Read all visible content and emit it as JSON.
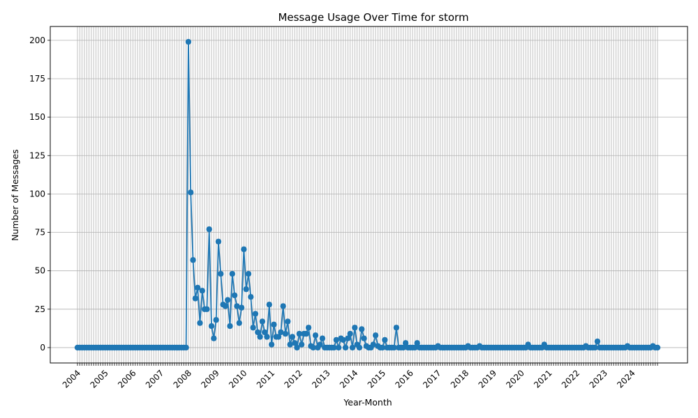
{
  "chart_data": {
    "type": "line",
    "title": "Message Usage Over Time for storm",
    "xlabel": "Year-Month",
    "ylabel": "Number of Messages",
    "ylim": [
      -10,
      209
    ],
    "yticks": [
      0,
      25,
      50,
      75,
      100,
      125,
      150,
      175,
      200
    ],
    "xtick_labels": [
      "2004",
      "2005",
      "2006",
      "2007",
      "2008",
      "2009",
      "2010",
      "2011",
      "2012",
      "2013",
      "2014",
      "2015",
      "2016",
      "2017",
      "2018",
      "2019",
      "2020",
      "2021",
      "2022",
      "2023",
      "2024"
    ],
    "grid": true,
    "line_color": "#1f77b4",
    "x_start": "2004-01",
    "x_end": "2024-12",
    "series": [
      {
        "values": [
          0,
          0,
          0,
          0,
          0,
          0,
          0,
          0,
          0,
          0,
          0,
          0,
          0,
          0,
          0,
          0,
          0,
          0,
          0,
          0,
          0,
          0,
          0,
          0,
          0,
          0,
          0,
          0,
          0,
          0,
          0,
          0,
          0,
          0,
          0,
          0,
          0,
          0,
          0,
          0,
          0,
          0,
          0,
          0,
          0,
          0,
          0,
          0,
          199,
          101,
          57,
          32,
          39,
          16,
          37,
          25,
          25,
          77,
          14,
          6,
          18,
          69,
          48,
          28,
          27,
          31,
          14,
          48,
          34,
          27,
          16,
          26,
          64,
          38,
          48,
          33,
          13,
          22,
          10,
          7,
          17,
          10,
          7,
          28,
          2,
          15,
          7,
          7,
          10,
          27,
          9,
          17,
          2,
          7,
          3,
          0,
          9,
          2,
          9,
          9,
          13,
          1,
          0,
          8,
          0,
          2,
          6,
          0,
          0,
          0,
          0,
          0,
          5,
          0,
          6,
          5,
          0,
          6,
          9,
          0,
          13,
          2,
          0,
          12,
          6,
          1,
          0,
          0,
          2,
          8,
          1,
          0,
          0,
          5,
          0,
          0,
          0,
          0,
          13,
          0,
          0,
          0,
          3,
          0,
          0,
          0,
          0,
          3,
          0,
          0,
          0,
          0,
          0,
          0,
          0,
          0,
          1,
          0,
          0,
          0,
          0,
          0,
          0,
          0,
          0,
          0,
          0,
          0,
          0,
          1,
          0,
          0,
          0,
          0,
          1,
          0,
          0,
          0,
          0,
          0,
          0,
          0,
          0,
          0,
          0,
          0,
          0,
          0,
          0,
          0,
          0,
          0,
          0,
          0,
          0,
          2,
          0,
          0,
          0,
          0,
          0,
          0,
          2,
          0,
          0,
          0,
          0,
          0,
          0,
          0,
          0,
          0,
          0,
          0,
          0,
          0,
          0,
          0,
          0,
          0,
          1,
          0,
          0,
          0,
          0,
          4,
          0,
          0,
          0,
          0,
          0,
          0,
          0,
          0,
          0,
          0,
          0,
          0,
          1,
          0,
          0,
          0,
          0,
          0,
          0,
          0,
          0,
          0,
          0,
          1,
          0,
          0
        ]
      }
    ]
  }
}
